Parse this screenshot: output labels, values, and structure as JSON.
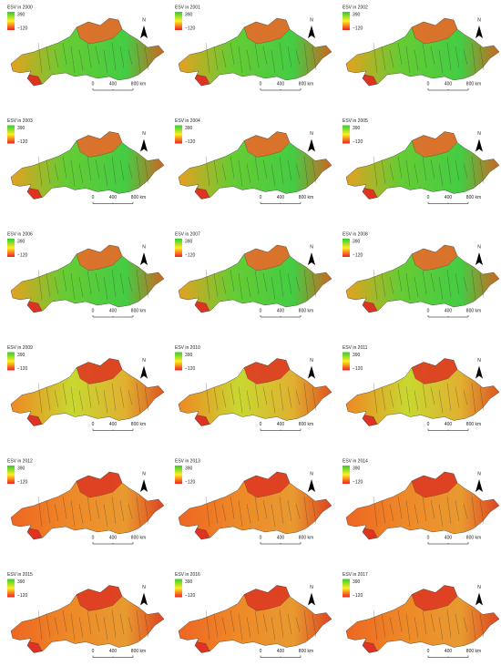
{
  "maps": [
    {
      "title": "ESV in 2000",
      "legend_max": "390",
      "legend_min": "−120",
      "scale": [
        "0",
        "400",
        "800 km"
      ],
      "north": "N"
    },
    {
      "title": "ESV in 2001",
      "legend_max": "390",
      "legend_min": "−120",
      "scale": [
        "0",
        "400",
        "800 km"
      ],
      "north": "N"
    },
    {
      "title": "ESV in 2002",
      "legend_max": "390",
      "legend_min": "−120",
      "scale": [
        "0",
        "400",
        "800 km"
      ],
      "north": "N"
    },
    {
      "title": "ESV in 2003",
      "legend_max": "390",
      "legend_min": "−120",
      "scale": [
        "0",
        "400",
        "800 km"
      ],
      "north": "N"
    },
    {
      "title": "ESV in 2004",
      "legend_max": "390",
      "legend_min": "−120",
      "scale": [
        "0",
        "400",
        "800 km"
      ],
      "north": "N"
    },
    {
      "title": "ESV in 2005",
      "legend_max": "390",
      "legend_min": "−120",
      "scale": [
        "0",
        "400",
        "800 km"
      ],
      "north": "N"
    },
    {
      "title": "ESV in 2006",
      "legend_max": "390",
      "legend_min": "−120",
      "scale": [
        "0",
        "400",
        "800 km"
      ],
      "north": "N"
    },
    {
      "title": "ESV in 2007",
      "legend_max": "390",
      "legend_min": "−120",
      "scale": [
        "0",
        "400",
        "800 km"
      ],
      "north": "N"
    },
    {
      "title": "ESV in 2008",
      "legend_max": "390",
      "legend_min": "−120",
      "scale": [
        "0",
        "400",
        "800 km"
      ],
      "north": "N"
    },
    {
      "title": "ESV in 2009",
      "legend_max": "390",
      "legend_min": "−120",
      "scale": [
        "0",
        "400",
        "800 km"
      ],
      "north": "N"
    },
    {
      "title": "ESV in 2010",
      "legend_max": "390",
      "legend_min": "−120",
      "scale": [
        "0",
        "400",
        "800 km"
      ],
      "north": "N"
    },
    {
      "title": "ESV in 2011",
      "legend_max": "390",
      "legend_min": "−120",
      "scale": [
        "0",
        "400",
        "800 km"
      ],
      "north": "N"
    },
    {
      "title": "ESV in 2012",
      "legend_max": "390",
      "legend_min": "−120",
      "scale": [
        "0",
        "400",
        "800 km"
      ],
      "north": "N"
    },
    {
      "title": "ESV in 2013",
      "legend_max": "390",
      "legend_min": "−120",
      "scale": [
        "0",
        "400",
        "800 km"
      ],
      "north": "N"
    },
    {
      "title": "ESV in 2014",
      "legend_max": "390",
      "legend_min": "−120",
      "scale": [
        "0",
        "400",
        "800 km"
      ],
      "north": "N"
    },
    {
      "title": "ESV in 2015",
      "legend_max": "390",
      "legend_min": "−120",
      "scale": [
        "0",
        "400",
        "800 km"
      ],
      "north": "N"
    },
    {
      "title": "ESV in 2016",
      "legend_max": "390",
      "legend_min": "−120",
      "scale": [
        "0",
        "400",
        "800 km"
      ],
      "north": "N"
    },
    {
      "title": "ESV in 2017",
      "legend_max": "390",
      "legend_min": "−120",
      "scale": [
        "0",
        "400",
        "800 km"
      ],
      "north": "N"
    }
  ]
}
